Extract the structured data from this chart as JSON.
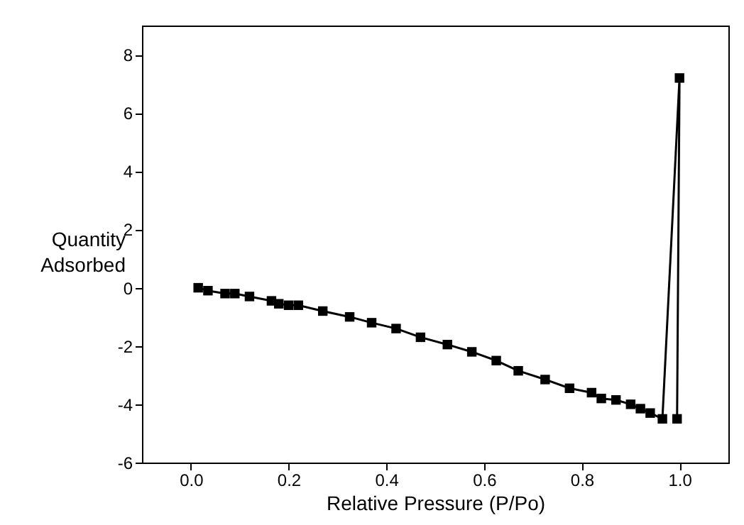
{
  "chart_data": {
    "type": "line",
    "xlabel": "Relative Pressure (P/Po)",
    "ylabel": "Quantity Adsorbed",
    "marker": "square",
    "line_style": "solid",
    "grid": false,
    "xlim": [
      -0.1,
      1.1
    ],
    "xticks": [
      {
        "value": 0,
        "label": "0.0"
      },
      {
        "value": 0.2,
        "label": "0.2"
      },
      {
        "value": 0.4,
        "label": "0.4"
      },
      {
        "value": 0.6,
        "label": "0.6"
      },
      {
        "value": 0.8,
        "label": "0.8"
      },
      {
        "value": 1,
        "label": "1.0"
      }
    ],
    "ylim": [
      -6,
      9
    ],
    "yticks": [
      -6,
      -4,
      -2,
      0,
      2,
      4,
      6,
      8
    ],
    "x": [
      0.015,
      0.035,
      0.07,
      0.09,
      0.12,
      0.165,
      0.18,
      0.2,
      0.22,
      0.27,
      0.325,
      0.37,
      0.42,
      0.47,
      0.525,
      0.575,
      0.625,
      0.67,
      0.725,
      0.775,
      0.82,
      0.84,
      0.87,
      0.9,
      0.92,
      0.94,
      0.965,
      1.0,
      0.995
    ],
    "series": [
      {
        "color": "#000000",
        "values": [
          0,
          -0.1,
          -0.2,
          -0.2,
          -0.3,
          -0.45,
          -0.55,
          -0.6,
          -0.6,
          -0.8,
          -1.0,
          -1.2,
          -1.4,
          -1.7,
          -1.95,
          -2.2,
          -2.5,
          -2.85,
          -3.15,
          -3.45,
          -3.6,
          -3.8,
          -3.85,
          -4.0,
          -4.15,
          -4.3,
          -4.5,
          7.2,
          -4.5
        ]
      }
    ]
  }
}
